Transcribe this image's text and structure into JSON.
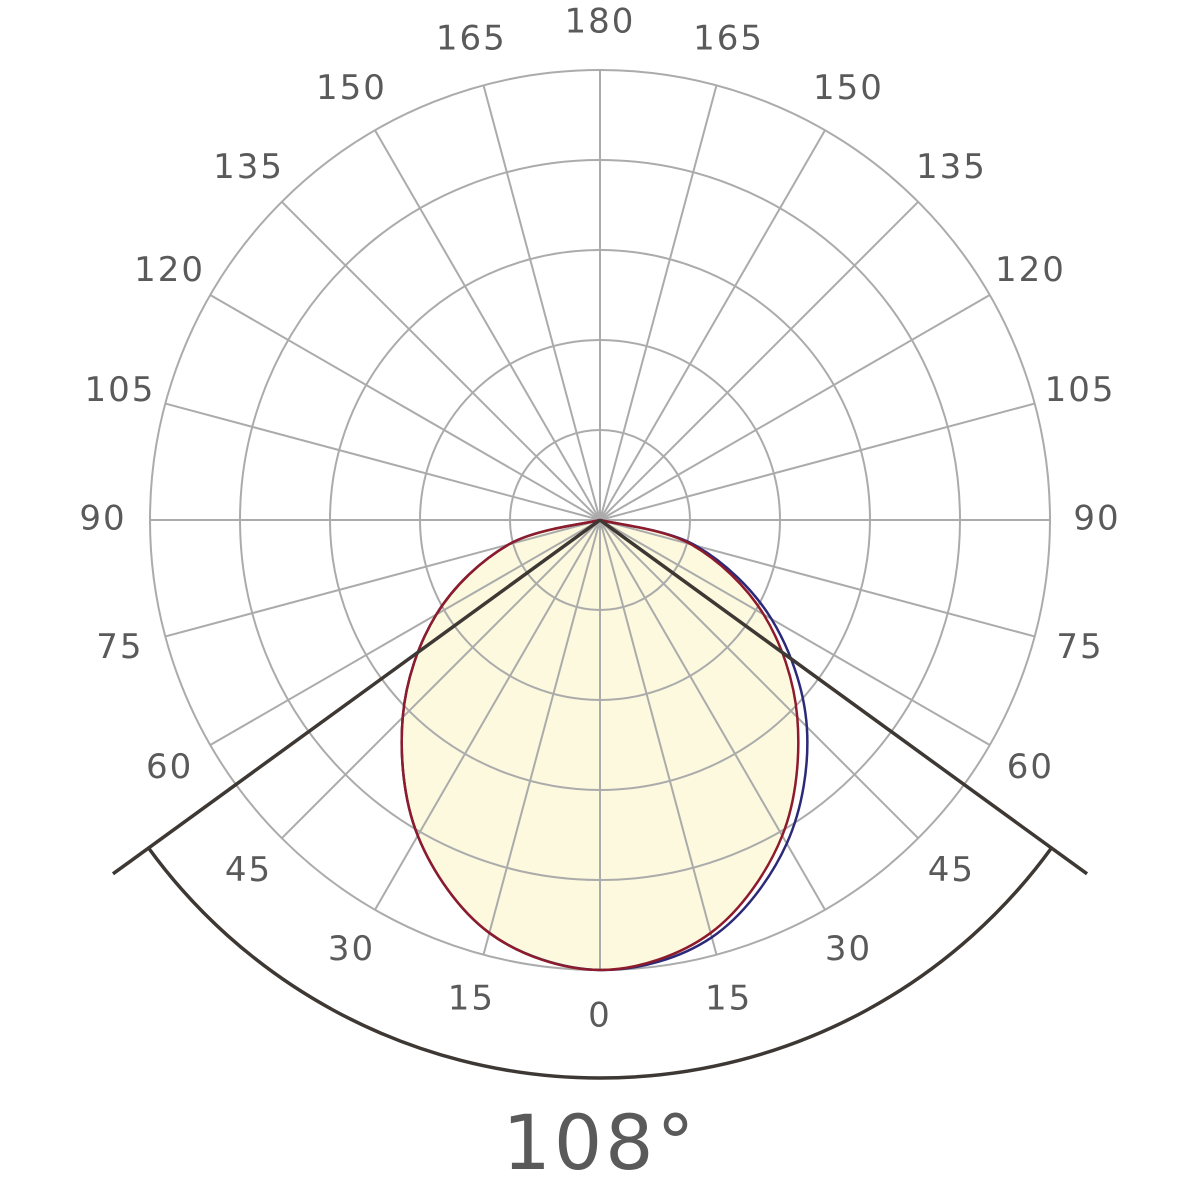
{
  "chart_data": {
    "type": "polar",
    "thetaticks": [
      0,
      15,
      30,
      45,
      60,
      75,
      90,
      105,
      120,
      135,
      150,
      165,
      180
    ],
    "rlim": [
      0,
      1
    ],
    "rticks": [
      0.2,
      0.4,
      0.6,
      0.8,
      1.0
    ],
    "grid": true,
    "theta": [
      -90,
      -75,
      -60,
      -45,
      -30,
      -15,
      0,
      15,
      30,
      45,
      60,
      75,
      90
    ],
    "series": [
      {
        "color": "#2b2a78",
        "values": [
          0,
          0.21,
          0.42,
          0.62,
          0.81,
          0.95,
          1,
          0.96,
          0.83,
          0.65,
          0.44,
          0.22,
          0
        ]
      },
      {
        "color": "#8e1b2c",
        "values": [
          0,
          0.21,
          0.42,
          0.62,
          0.81,
          0.95,
          1,
          0.95,
          0.81,
          0.62,
          0.42,
          0.21,
          0
        ]
      }
    ],
    "fill_color": "#fcf9de",
    "beam_angle": 108,
    "beam_angle_label": "108°"
  }
}
